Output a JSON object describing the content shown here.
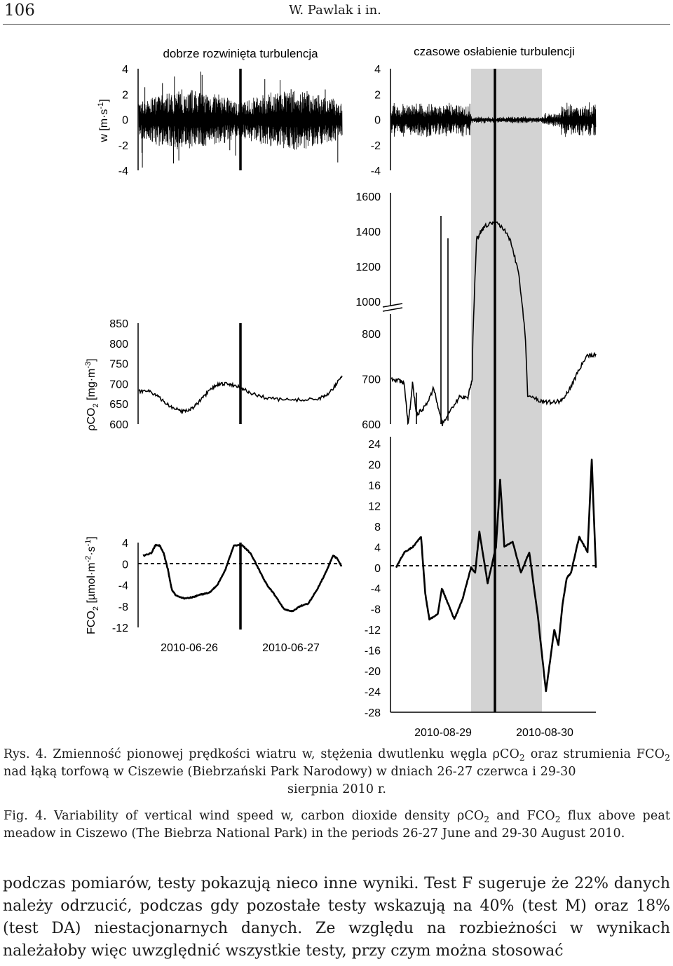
{
  "header": {
    "page_number": "106",
    "running_head": "W. Pawlak i in."
  },
  "figure": {
    "left_title": "dobrze rozwinięta turbulencja",
    "right_title": "czasowe osłabienie turbulencji",
    "ylabel_w": "w [m·s",
    "ylabel_w_sup": "-1",
    "ylabel_w_tail": "]",
    "ylabel_rho_pre": "ρCO",
    "ylabel_rho_sub": "2",
    "ylabel_rho_unit": " [mg·m",
    "ylabel_rho_sup": "-3",
    "ylabel_rho_tail": "]",
    "ylabel_f_pre": "FCO",
    "ylabel_f_sub": "2",
    "ylabel_f_unit": " [µmol·m",
    "ylabel_f_sup1": "-2",
    "ylabel_f_mid": "·s",
    "ylabel_f_sup2": "-1",
    "ylabel_f_tail": "]",
    "left_dates": [
      "2010-06-26",
      "2010-06-27"
    ],
    "right_dates": [
      "2010-08-29",
      "2010-08-30"
    ],
    "shade_color": "#d3d3d3"
  },
  "chart_data": [
    {
      "type": "line",
      "panel": "left-w",
      "ylabel": "w [m·s-1]",
      "ylim": [
        -4,
        4
      ],
      "ticks": [
        4,
        2,
        0,
        -2,
        -4
      ],
      "x": [
        "2010-06-26",
        "2010-06-27"
      ],
      "description_noise_amplitude": [
        2.0,
        2.5
      ]
    },
    {
      "type": "line",
      "panel": "right-w",
      "ylim": [
        -4,
        4
      ],
      "ticks": [
        4,
        2,
        0,
        -2,
        -4
      ],
      "x": [
        "2010-08-29",
        "2010-08-30"
      ]
    },
    {
      "type": "line",
      "panel": "left-rhoco2",
      "ylabel": "ρCO2 [mg·m-3]",
      "ylim": [
        600,
        850
      ],
      "ticks": [
        850,
        800,
        750,
        700,
        650,
        600
      ],
      "x_hours": [
        0,
        2,
        4,
        6,
        8,
        10,
        12,
        14,
        16,
        18,
        20,
        22,
        24,
        26,
        30,
        34,
        38,
        42,
        44,
        46,
        48
      ],
      "values": [
        680,
        685,
        672,
        655,
        640,
        633,
        635,
        652,
        675,
        695,
        700,
        698,
        692,
        678,
        665,
        660,
        660,
        662,
        668,
        690,
        720
      ]
    },
    {
      "type": "line",
      "panel": "right-rhoco2",
      "ylim_lower": [
        600,
        800
      ],
      "ylim_upper": [
        1000,
        1600
      ],
      "ticks_lower": [
        800,
        700,
        600
      ],
      "ticks_upper": [
        1600,
        1400,
        1200,
        1000
      ],
      "x_hours": [
        0,
        2,
        3,
        4,
        5,
        6,
        8,
        10,
        12,
        14,
        16,
        18,
        19,
        20,
        21,
        22,
        24,
        26,
        28,
        30,
        32,
        34,
        36,
        38,
        40,
        42,
        44,
        46,
        48
      ],
      "values": [
        700,
        695,
        690,
        598,
        690,
        620,
        640,
        680,
        600,
        630,
        660,
        660,
        700,
        1350,
        1400,
        1430,
        1450,
        1430,
        1350,
        1150,
        665,
        655,
        650,
        648,
        652,
        680,
        720,
        750,
        755
      ]
    },
    {
      "type": "line",
      "panel": "left-fco2",
      "ylabel": "FCO2 [µmol·m-2·s-1]",
      "ylim": [
        -12,
        4
      ],
      "ticks": [
        4,
        0,
        -4,
        -8,
        -12
      ],
      "x_hours": [
        0,
        2,
        3,
        4,
        5,
        6,
        7,
        8,
        10,
        12,
        14,
        16,
        18,
        20,
        22,
        24,
        26,
        28,
        30,
        32,
        34,
        36,
        38,
        40,
        42,
        44,
        46,
        47,
        48
      ],
      "values": [
        1.5,
        2,
        3.5,
        3.5,
        2,
        -1,
        -5,
        -6,
        -6.5,
        -6.3,
        -5.8,
        -5.5,
        -4,
        -1,
        3.5,
        3.5,
        2,
        -1,
        -4,
        -6,
        -8.5,
        -9,
        -8,
        -7.5,
        -5,
        -2,
        1.5,
        1,
        -0.5
      ]
    },
    {
      "type": "line",
      "panel": "right-fco2",
      "ylim": [
        -28,
        24
      ],
      "ticks": [
        24,
        20,
        16,
        12,
        8,
        4,
        0,
        -4,
        -8,
        -12,
        -16,
        -20,
        -24,
        -28
      ],
      "x_hours": [
        0,
        2,
        4,
        6,
        7,
        8,
        10,
        11,
        12,
        14,
        16,
        18,
        19,
        20,
        22,
        24,
        25,
        26,
        28,
        30,
        32,
        34,
        36,
        38,
        39,
        40,
        41,
        42,
        44,
        46,
        47,
        48
      ],
      "values": [
        0,
        3,
        4,
        6,
        -5,
        -10,
        -9,
        -4,
        -6,
        -10,
        -6,
        0,
        -1,
        7,
        -3,
        4,
        17,
        4,
        5,
        -1,
        3,
        -9,
        -24,
        -12,
        -15,
        -7,
        -2,
        -1,
        6,
        3,
        21,
        0
      ]
    }
  ],
  "caption_pl": {
    "prefix": "Rys. 4. Zmienność pionowej prędkości wiatru w, stężenia dwutlenku węgla ρCO",
    "sub1": "2",
    "mid1": " oraz strumienia FCO",
    "sub2": "2",
    "mid2": " nad łąką torfową w Ciszewie (Biebrzański Park Narodowy) w dniach 26-27 czerwca i 29-30",
    "last": "sierpnia 2010 r."
  },
  "caption_en": {
    "prefix": "Fig. 4. Variability of vertical wind speed w, carbon dioxide density ρCO",
    "sub1": "2",
    "mid1": " and FCO",
    "sub2": "2",
    "mid2": " flux above peat meadow in Ciszewo (The Biebrza National Park) in the periods 26-27 June and 29-30 August 2010."
  },
  "body_text": "podczas pomiarów, testy pokazują nieco inne wyniki. Test F sugeruje że 22% danych należy odrzucić, podczas gdy pozostałe testy wskazują na 40% (test M) oraz 18% (test DA) niestacjonarnych danych. Ze względu na rozbieżności w wynikach należałoby więc uwzględnić wszystkie testy, przy czym można stosować"
}
